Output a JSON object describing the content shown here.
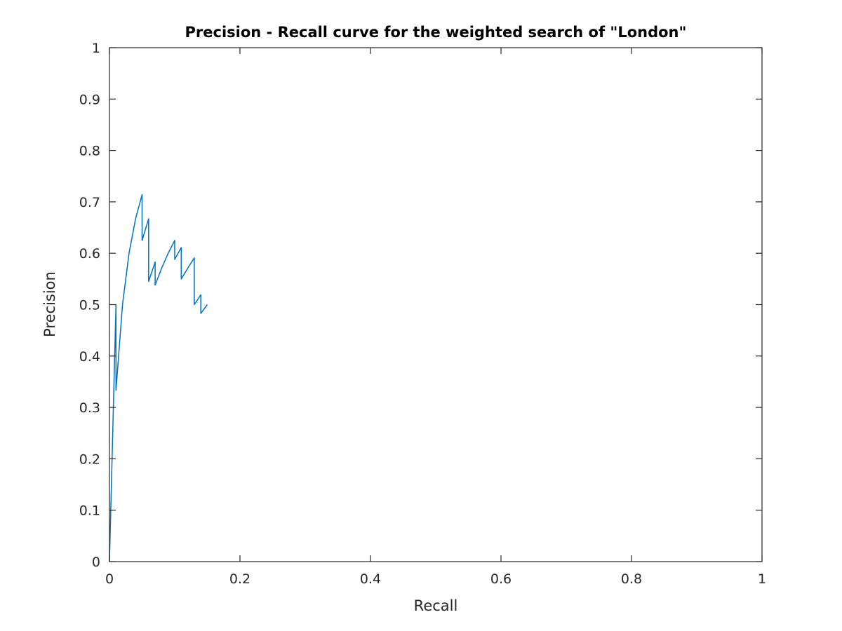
{
  "chart_data": {
    "type": "line",
    "title": "Precision - Recall curve for the weighted search of \"London\"",
    "xlabel": "Recall",
    "ylabel": "Precision",
    "xlim": [
      0,
      1
    ],
    "ylim": [
      0,
      1
    ],
    "xticks": [
      "0",
      "0.2",
      "0.4",
      "0.6",
      "0.8",
      "1"
    ],
    "yticks": [
      "0",
      "0.1",
      "0.2",
      "0.3",
      "0.4",
      "0.5",
      "0.6",
      "0.7",
      "0.8",
      "0.9",
      "1"
    ],
    "grid": false,
    "series_color": "#0072BD",
    "series": [
      {
        "x": [
          0,
          0.01,
          0.01,
          0.02,
          0.03,
          0.04,
          0.05,
          0.05,
          0.06,
          0.06,
          0.07,
          0.07,
          0.08,
          0.09,
          0.1,
          0.1,
          0.11,
          0.11,
          0.12,
          0.13,
          0.13,
          0.14,
          0.14,
          0.15
        ],
        "y": [
          0,
          0.5,
          0.333,
          0.5,
          0.6,
          0.667,
          0.714,
          0.625,
          0.667,
          0.545,
          0.583,
          0.538,
          0.571,
          0.6,
          0.625,
          0.588,
          0.611,
          0.55,
          0.571,
          0.591,
          0.5,
          0.519,
          0.483,
          0.5
        ]
      }
    ]
  }
}
